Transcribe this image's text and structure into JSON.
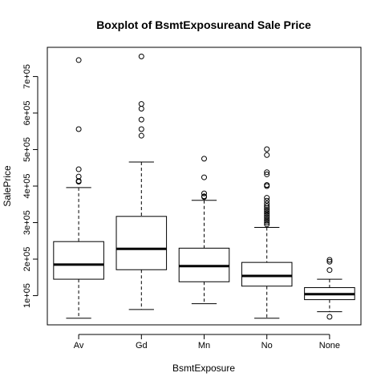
{
  "chart_data": {
    "type": "boxplot",
    "title": "Boxplot of BsmtExposureand Sale Price",
    "xlabel": "BsmtExposure",
    "ylabel": "SalePrice",
    "categories": [
      "Av",
      "Gd",
      "Mn",
      "No",
      "None"
    ],
    "ylim": [
      20000,
      780000
    ],
    "yticks": [
      100000,
      200000,
      300000,
      400000,
      500000,
      600000,
      700000
    ],
    "ytick_labels": [
      "1e+05",
      "2e+05",
      "3e+05",
      "4e+05",
      "5e+05",
      "6e+05",
      "7e+05"
    ],
    "boxes": [
      {
        "category": "Av",
        "whisker_low": 38000,
        "q1": 145000,
        "median": 185000,
        "q3": 248000,
        "whisker_high": 396000,
        "outliers": [
          745000,
          556000,
          446000,
          426000,
          414000,
          412000
        ]
      },
      {
        "category": "Gd",
        "whisker_low": 62000,
        "q1": 171000,
        "median": 228000,
        "q3": 317000,
        "whisker_high": 466000,
        "outliers": [
          755000,
          625000,
          612000,
          582000,
          556000,
          538000
        ]
      },
      {
        "category": "Mn",
        "whisker_low": 78000,
        "q1": 138000,
        "median": 181000,
        "q3": 230000,
        "whisker_high": 361000,
        "outliers": [
          475000,
          424000,
          380000,
          372000,
          370000
        ]
      },
      {
        "category": "No",
        "whisker_low": 38000,
        "q1": 126000,
        "median": 154000,
        "q3": 191000,
        "whisker_high": 287000,
        "outliers": [
          501000,
          485000,
          438000,
          432000,
          403000,
          400000,
          368000,
          360000,
          352000,
          345000,
          340000,
          335000,
          330000,
          325000,
          320000,
          315000,
          310000,
          305000,
          300000,
          295000
        ]
      },
      {
        "category": "None",
        "whisker_low": 56000,
        "q1": 89000,
        "median": 104000,
        "q3": 122000,
        "whisker_high": 145000,
        "outliers": [
          198000,
          193000,
          170000,
          42000
        ]
      }
    ],
    "grid": false,
    "legend": "none"
  }
}
